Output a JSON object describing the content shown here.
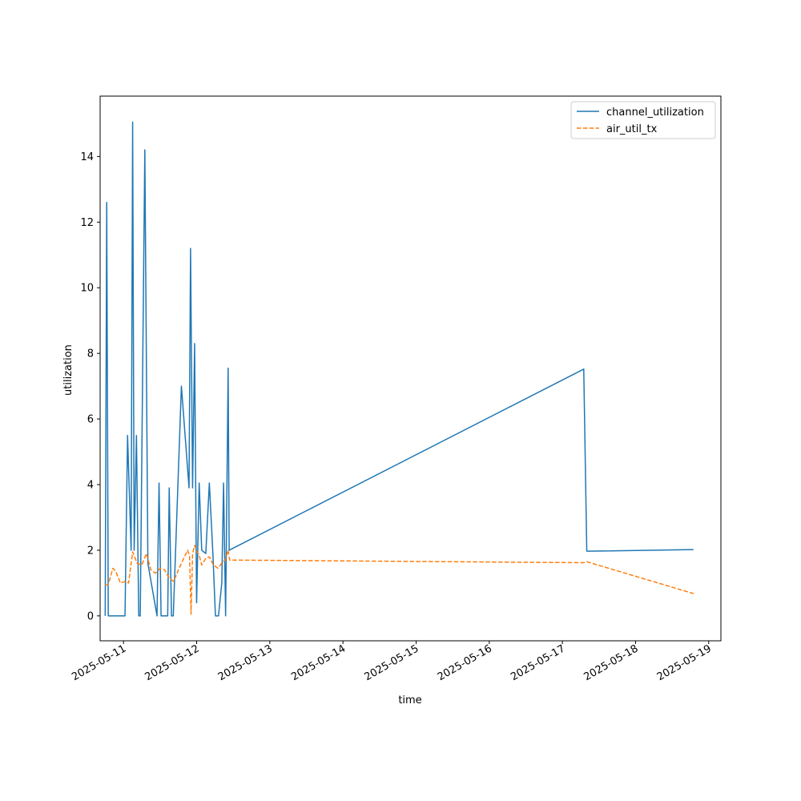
{
  "chart_data": {
    "type": "line",
    "title": "",
    "xlabel": "time",
    "ylabel": "utilization",
    "x_tick_labels": [
      "2025-05-11",
      "2025-05-12",
      "2025-05-13",
      "2025-05-14",
      "2025-05-15",
      "2025-05-16",
      "2025-05-17",
      "2025-05-18",
      "2025-05-19"
    ],
    "y_ticks": [
      0,
      2,
      4,
      6,
      8,
      10,
      12,
      14
    ],
    "xlim": [
      "2025-05-10T16:20",
      "2025-05-19T04:00"
    ],
    "ylim": [
      -0.76,
      15.84
    ],
    "grid": false,
    "legend_position": "upper right",
    "series": [
      {
        "name": "channel_utilization",
        "color": "#1f77b4",
        "style": "solid",
        "points": [
          [
            "2025-05-10T18:00",
            0
          ],
          [
            "2025-05-10T18:30",
            12.6
          ],
          [
            "2025-05-10T19:00",
            0
          ],
          [
            "2025-05-11T00:30",
            0
          ],
          [
            "2025-05-11T01:20",
            5.5
          ],
          [
            "2025-05-11T02:30",
            2.0
          ],
          [
            "2025-05-11T03:00",
            15.05
          ],
          [
            "2025-05-11T03:30",
            2.0
          ],
          [
            "2025-05-11T04:15",
            5.5
          ],
          [
            "2025-05-11T05:00",
            0
          ],
          [
            "2025-05-11T05:30",
            0
          ],
          [
            "2025-05-11T07:00",
            14.2
          ],
          [
            "2025-05-11T08:00",
            1.6
          ],
          [
            "2025-05-11T11:00",
            0
          ],
          [
            "2025-05-11T11:40",
            4.05
          ],
          [
            "2025-05-11T12:20",
            0
          ],
          [
            "2025-05-11T14:30",
            0
          ],
          [
            "2025-05-11T15:00",
            3.9
          ],
          [
            "2025-05-11T15:45",
            0
          ],
          [
            "2025-05-11T16:20",
            0
          ],
          [
            "2025-05-11T19:00",
            7.0
          ],
          [
            "2025-05-11T21:30",
            3.9
          ],
          [
            "2025-05-11T22:00",
            11.2
          ],
          [
            "2025-05-11T22:40",
            3.9
          ],
          [
            "2025-05-11T23:20",
            8.3
          ],
          [
            "2025-05-11T23:59",
            0.4
          ],
          [
            "2025-05-12T00:50",
            4.05
          ],
          [
            "2025-05-12T01:40",
            2.0
          ],
          [
            "2025-05-12T03:00",
            1.9
          ],
          [
            "2025-05-12T04:10",
            4.05
          ],
          [
            "2025-05-12T05:20",
            1.9
          ],
          [
            "2025-05-12T06:10",
            0
          ],
          [
            "2025-05-12T07:10",
            0
          ],
          [
            "2025-05-12T08:15",
            1.0
          ],
          [
            "2025-05-12T08:50",
            4.05
          ],
          [
            "2025-05-12T09:30",
            0
          ],
          [
            "2025-05-12T10:20",
            7.55
          ],
          [
            "2025-05-12T10:40",
            2.0
          ],
          [
            "2025-05-17T07:00",
            7.52
          ],
          [
            "2025-05-17T08:00",
            1.97
          ],
          [
            "2025-05-18T19:00",
            2.02
          ]
        ]
      },
      {
        "name": "air_util_tx",
        "color": "#ff7f0e",
        "style": "dashed",
        "points": [
          [
            "2025-05-10T18:00",
            0.95
          ],
          [
            "2025-05-10T19:00",
            0.95
          ],
          [
            "2025-05-10T20:30",
            1.45
          ],
          [
            "2025-05-10T21:30",
            1.35
          ],
          [
            "2025-05-10T23:00",
            1.0
          ],
          [
            "2025-05-11T00:30",
            1.05
          ],
          [
            "2025-05-11T01:40",
            1.0
          ],
          [
            "2025-05-11T03:00",
            1.95
          ],
          [
            "2025-05-11T04:30",
            1.6
          ],
          [
            "2025-05-11T06:00",
            1.55
          ],
          [
            "2025-05-11T07:30",
            1.9
          ],
          [
            "2025-05-11T09:00",
            1.4
          ],
          [
            "2025-05-11T10:30",
            1.3
          ],
          [
            "2025-05-11T12:00",
            1.45
          ],
          [
            "2025-05-11T13:30",
            1.4
          ],
          [
            "2025-05-11T15:00",
            1.15
          ],
          [
            "2025-05-11T16:30",
            1.05
          ],
          [
            "2025-05-11T18:00",
            1.4
          ],
          [
            "2025-05-11T21:00",
            2.0
          ],
          [
            "2025-05-11T21:40",
            1.85
          ],
          [
            "2025-05-11T22:10",
            0.05
          ],
          [
            "2025-05-11T22:40",
            1.9
          ],
          [
            "2025-05-11T23:20",
            2.15
          ],
          [
            "2025-05-12T00:10",
            1.95
          ],
          [
            "2025-05-12T00:50",
            1.85
          ],
          [
            "2025-05-12T01:40",
            1.55
          ],
          [
            "2025-05-12T03:00",
            1.75
          ],
          [
            "2025-05-12T04:10",
            1.8
          ],
          [
            "2025-05-12T05:30",
            1.55
          ],
          [
            "2025-05-12T07:00",
            1.45
          ],
          [
            "2025-05-12T08:10",
            1.6
          ],
          [
            "2025-05-12T09:20",
            1.7
          ],
          [
            "2025-05-12T10:20",
            2.0
          ],
          [
            "2025-05-12T10:50",
            1.7
          ],
          [
            "2025-05-12T12:00",
            1.7
          ],
          [
            "2025-05-17T07:00",
            1.62
          ],
          [
            "2025-05-17T08:00",
            1.65
          ],
          [
            "2025-05-18T19:00",
            0.68
          ]
        ]
      }
    ]
  }
}
